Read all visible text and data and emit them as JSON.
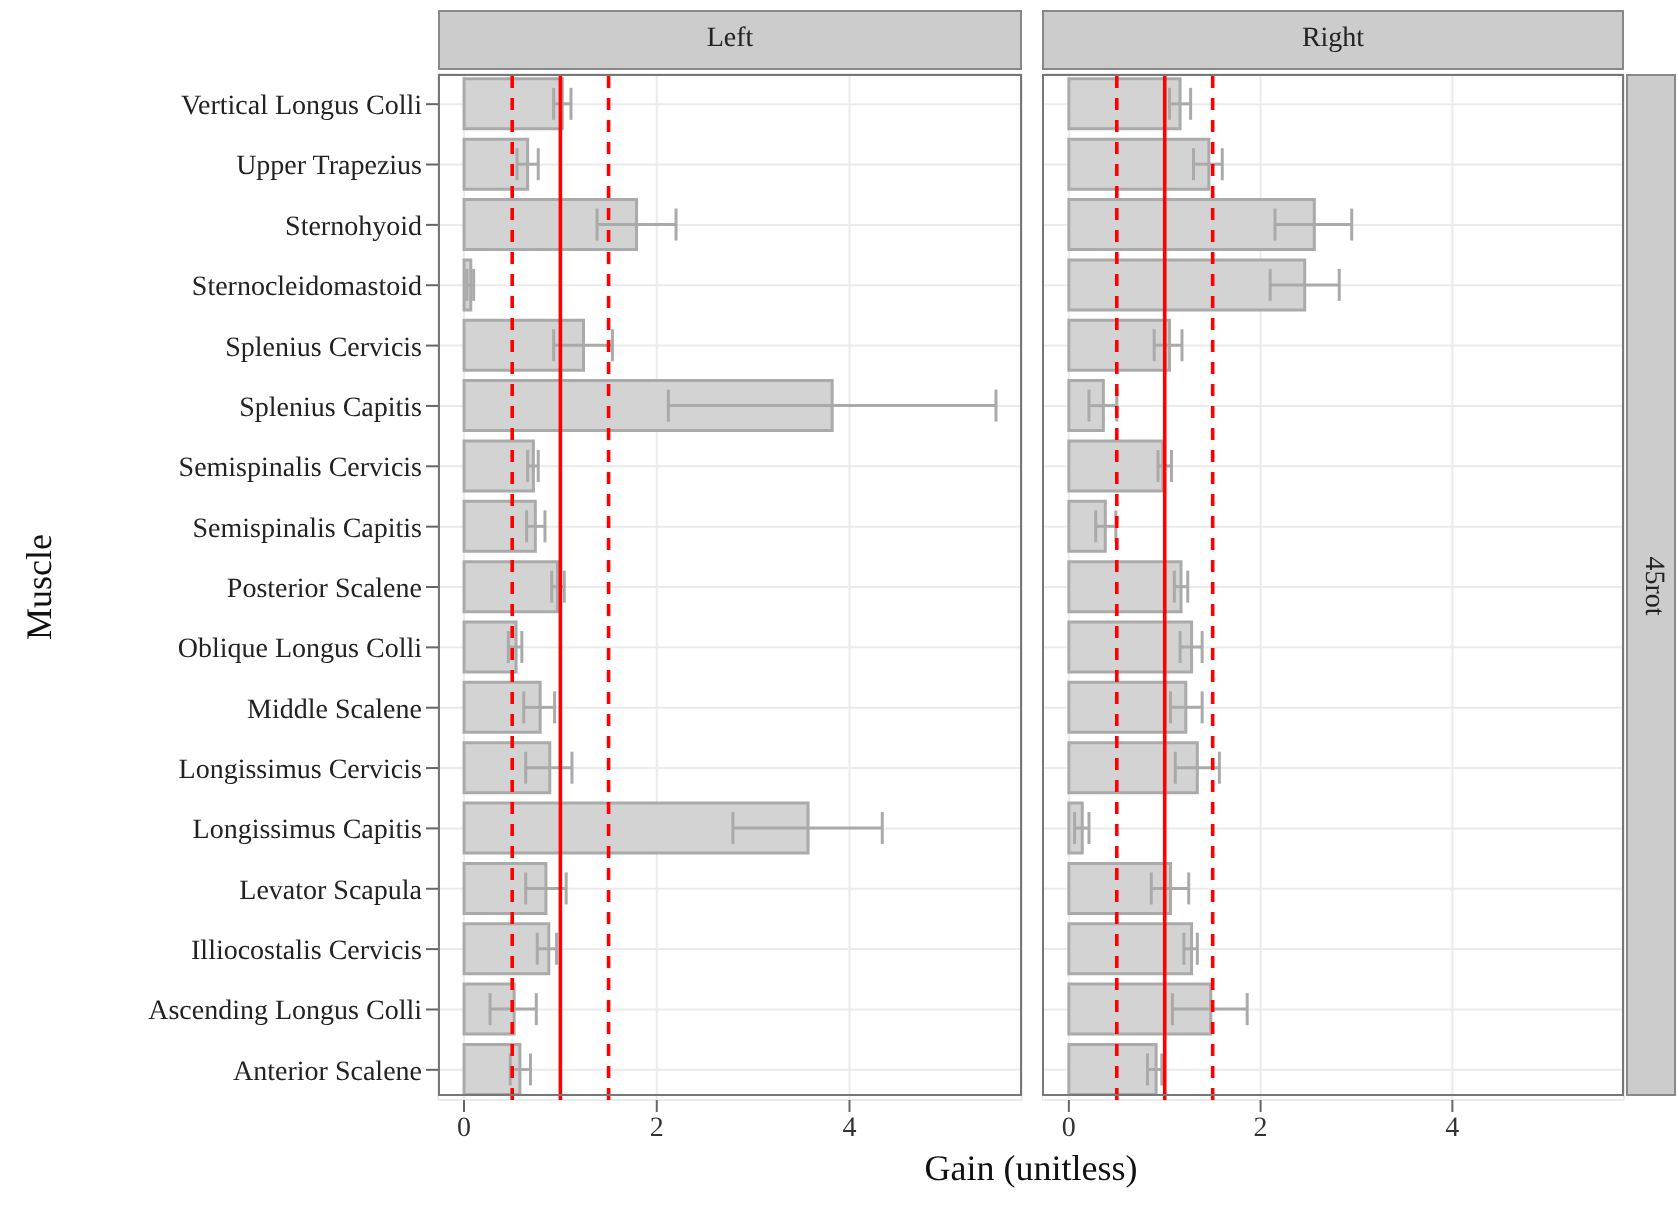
{
  "chart_data": [
    {
      "type": "bar",
      "orientation": "horizontal",
      "title": "Left",
      "ylabel": "Muscle",
      "xlabel": "Gain (unitless)",
      "color": "#d3d3d3",
      "grid": true,
      "xlim": [
        -0.27,
        5.79
      ],
      "xticks": [
        0,
        2,
        4
      ],
      "categories": [
        "Vertical Longus Colli",
        "Upper Trapezius",
        "Sternohyoid",
        "Sternocleidomastoid",
        "Splenius Cervicis",
        "Splenius Capitis",
        "Semispinalis Cervicis",
        "Semispinalis Capitis",
        "Posterior Scalene",
        "Oblique Longus Colli",
        "Middle Scalene",
        "Longissimus Cervicis",
        "Longissimus Capitis",
        "Levator Scapula",
        "Illiocostalis Cervicis",
        "Ascending Longus Colli",
        "Anterior Scalene"
      ],
      "values": [
        1.02,
        0.66,
        1.79,
        0.07,
        1.24,
        3.82,
        0.72,
        0.74,
        0.97,
        0.54,
        0.79,
        0.89,
        3.57,
        0.85,
        0.88,
        0.52,
        0.58
      ],
      "errors": [
        [
          0.93,
          1.11
        ],
        [
          0.55,
          0.77
        ],
        [
          1.38,
          2.2
        ],
        [
          0.03,
          0.1
        ],
        [
          0.93,
          1.54
        ],
        [
          2.12,
          5.52
        ],
        [
          0.66,
          0.77
        ],
        [
          0.65,
          0.84
        ],
        [
          0.91,
          1.04
        ],
        [
          0.46,
          0.6
        ],
        [
          0.62,
          0.94
        ],
        [
          0.64,
          1.12
        ],
        [
          2.79,
          4.34
        ],
        [
          0.64,
          1.06
        ],
        [
          0.76,
          0.96
        ],
        [
          0.27,
          0.75
        ],
        [
          0.48,
          0.69
        ]
      ],
      "ref_lines": [
        {
          "axis": "x",
          "value": 0.5,
          "color": "#ff0000",
          "line_style": "dashed"
        },
        {
          "axis": "x",
          "value": 1,
          "color": "#ff0000",
          "line_style": "solid"
        },
        {
          "axis": "x",
          "value": 1.5,
          "color": "#ff0000",
          "line_style": "dashed"
        }
      ]
    },
    {
      "type": "bar",
      "orientation": "horizontal",
      "title": "Right",
      "annotations": [
        "45rot"
      ],
      "tick_labels": "x",
      "color": "#d3d3d3",
      "grid": true,
      "xlim": [
        -0.28,
        5.79
      ],
      "xticks": [
        0,
        2,
        4
      ],
      "categories": [
        "Vertical Longus Colli",
        "Upper Trapezius",
        "Sternohyoid",
        "Sternocleidomastoid",
        "Splenius Cervicis",
        "Splenius Capitis",
        "Semispinalis Cervicis",
        "Semispinalis Capitis",
        "Posterior Scalene",
        "Oblique Longus Colli",
        "Middle Scalene",
        "Longissimus Cervicis",
        "Longissimus Capitis",
        "Levator Scapula",
        "Illiocostalis Cervicis",
        "Ascending Longus Colli",
        "Anterior Scalene"
      ],
      "values": [
        1.16,
        1.46,
        2.56,
        2.46,
        1.05,
        0.36,
        0.98,
        0.38,
        1.17,
        1.28,
        1.22,
        1.34,
        0.14,
        1.06,
        1.28,
        1.48,
        0.91
      ],
      "errors": [
        [
          1.05,
          1.27
        ],
        [
          1.3,
          1.6
        ],
        [
          2.15,
          2.95
        ],
        [
          2.1,
          2.82
        ],
        [
          0.89,
          1.18
        ],
        [
          0.21,
          0.5
        ],
        [
          0.93,
          1.07
        ],
        [
          0.28,
          0.49
        ],
        [
          1.1,
          1.24
        ],
        [
          1.16,
          1.39
        ],
        [
          1.06,
          1.39
        ],
        [
          1.11,
          1.57
        ],
        [
          0.06,
          0.21
        ],
        [
          0.86,
          1.25
        ],
        [
          1.2,
          1.34
        ],
        [
          1.08,
          1.86
        ],
        [
          0.82,
          0.97
        ]
      ],
      "ref_lines": [
        {
          "axis": "x",
          "value": 0.5,
          "color": "#ff0000",
          "line_style": "dashed"
        },
        {
          "axis": "x",
          "value": 1,
          "color": "#ff0000",
          "line_style": "solid"
        },
        {
          "axis": "x",
          "value": 1.5,
          "color": "#ff0000",
          "line_style": "dashed"
        }
      ]
    }
  ]
}
